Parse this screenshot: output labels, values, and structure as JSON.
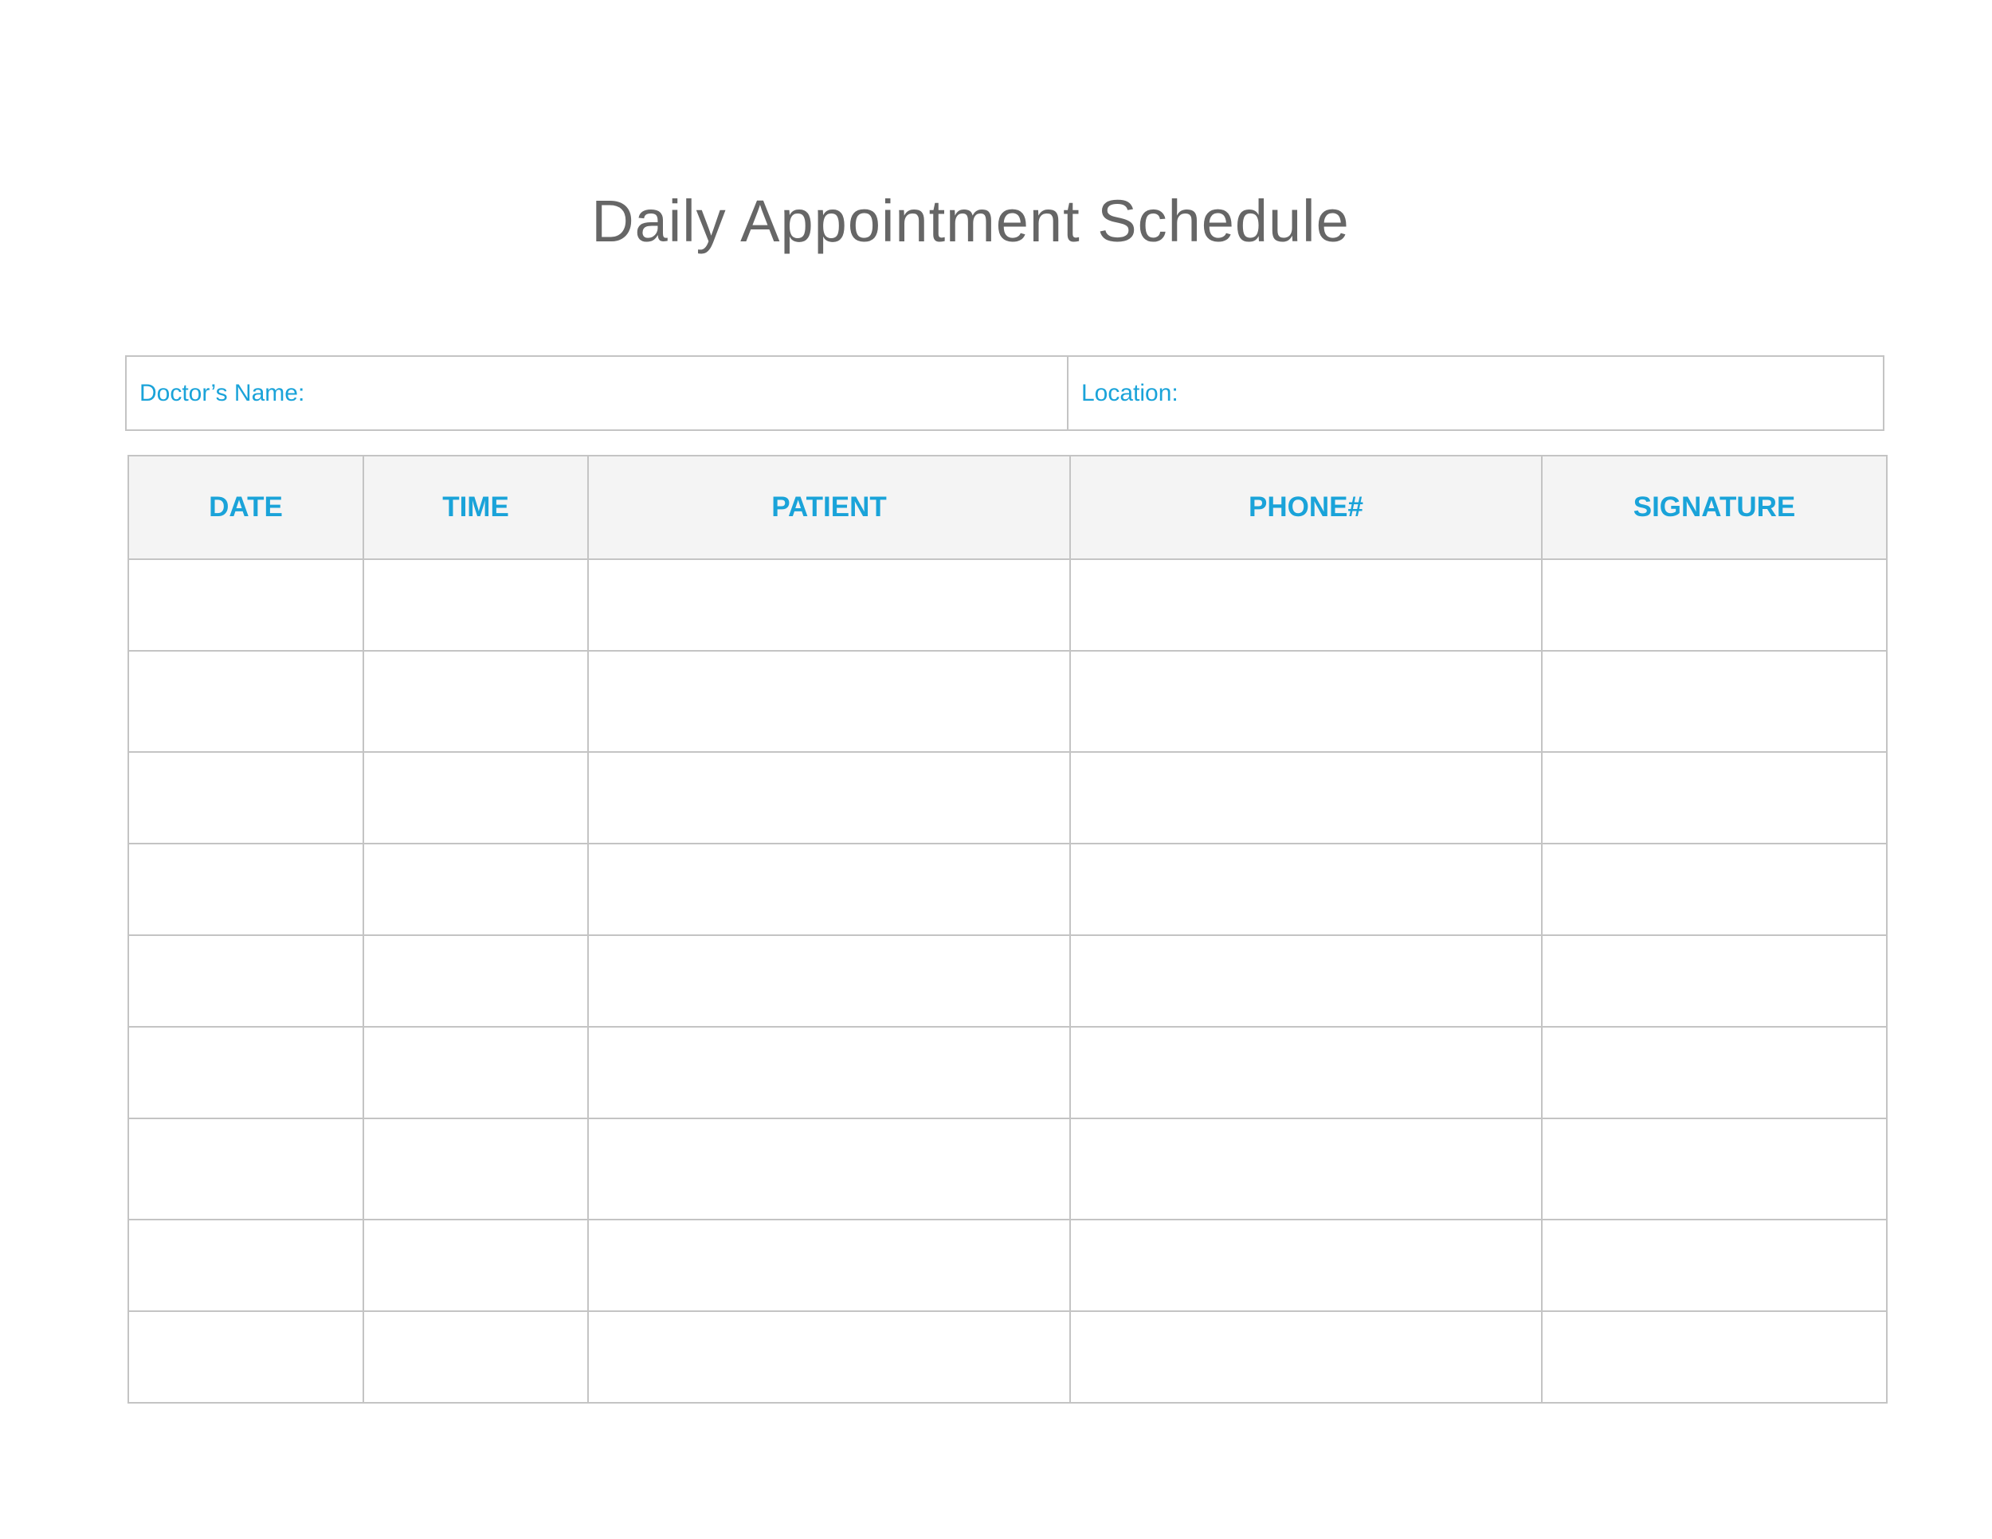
{
  "title": "Daily Appointment Schedule",
  "info": {
    "doctor_label": "Doctor’s Name:",
    "location_label": "Location:"
  },
  "table": {
    "columns": [
      "DATE",
      "TIME",
      "PATIENT",
      "PHONE#",
      "SIGNATURE"
    ],
    "empty_rows": 9
  },
  "colors": {
    "accent": "#1aa3d9",
    "title": "#666666",
    "border": "#c4c4c4",
    "header_bg": "#f4f4f4"
  }
}
